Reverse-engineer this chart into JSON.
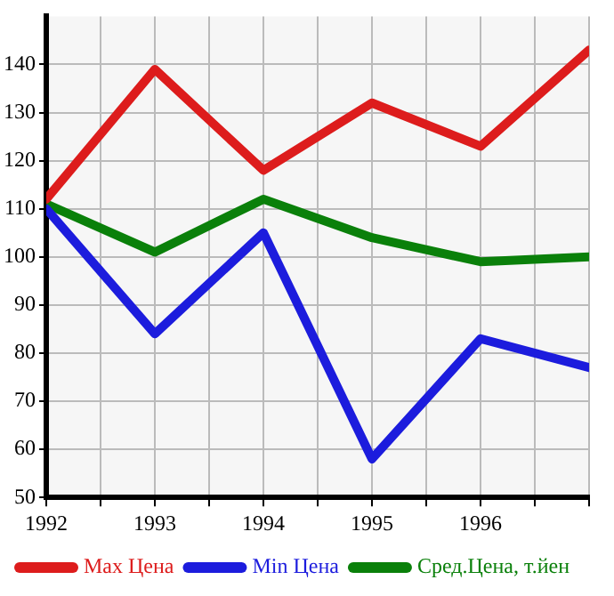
{
  "chart_data": {
    "type": "line",
    "x": [
      1992,
      1993,
      1994,
      1995,
      1996,
      1997
    ],
    "series": [
      {
        "name": "Max Цена",
        "color": "#dd1c1c",
        "values": [
          112,
          139,
          118,
          132,
          123,
          143
        ]
      },
      {
        "name": "Min Цена",
        "color": "#1c1cdd",
        "values": [
          110,
          84,
          105,
          58,
          83,
          77
        ]
      },
      {
        "name": "Сред.Цена, т.йен",
        "color": "#0a800a",
        "values": [
          111,
          101,
          112,
          104,
          99,
          100
        ]
      }
    ],
    "xlim": [
      1992,
      1997
    ],
    "xticks": [
      1992,
      {
        "value": 1992.5,
        "label": null
      },
      1993,
      {
        "value": 1993.5,
        "label": null
      },
      1994,
      {
        "value": 1994.5,
        "label": null
      },
      1995,
      {
        "value": 1995.5,
        "label": null
      },
      1996,
      {
        "value": 1996.5,
        "label": null
      },
      {
        "value": 1997,
        "label": null
      }
    ],
    "ylim": [
      50,
      150
    ],
    "yticks": [
      50,
      60,
      70,
      80,
      90,
      100,
      110,
      120,
      130,
      140
    ],
    "grid": true,
    "legend": "bottom",
    "marker": "none",
    "line_style": "solid"
  }
}
